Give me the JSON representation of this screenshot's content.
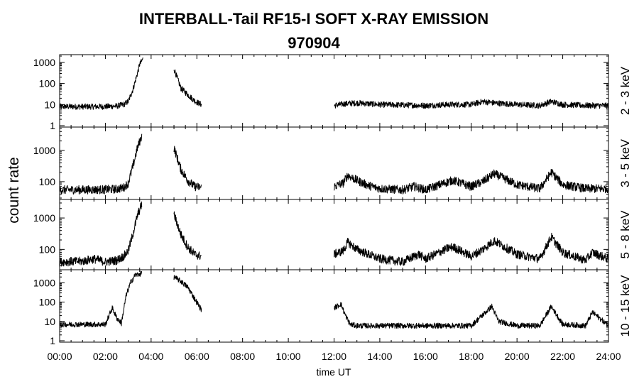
{
  "chart_data": {
    "type": "line",
    "title": "INTERBALL-Tail RF15-I SOFT X-RAY EMISSION",
    "subtitle": "970904",
    "ylabel": "count rate",
    "xlabel": "time UT",
    "y_scale": "log",
    "xlim": [
      0,
      24
    ],
    "x_ticks": [
      "00:00",
      "02:00",
      "04:00",
      "06:00",
      "08:00",
      "10:00",
      "12:00",
      "14:00",
      "16:00",
      "18:00",
      "20:00",
      "22:00",
      "24:00"
    ],
    "panels": [
      {
        "name": "2 - 3 keV",
        "ylim": [
          1,
          2000
        ],
        "y_ticks": [
          1,
          10,
          100,
          1000
        ],
        "y_tick_labels": [
          "1",
          "10",
          "100",
          "1000"
        ],
        "segments": [
          {
            "x": [
              0.0,
              1.0,
              2.0,
              2.5,
              2.8,
              3.0,
              3.2,
              3.4,
              3.5,
              3.65
            ],
            "y": [
              8,
              8,
              8,
              8.5,
              10,
              14,
              50,
              300,
              800,
              1500
            ]
          },
          {
            "x": [
              5.0,
              5.3,
              5.6,
              5.9,
              6.2
            ],
            "y": [
              500,
              60,
              30,
              15,
              10
            ]
          },
          {
            "x": [
              12.0,
              12.5,
              13,
              14,
              15,
              16,
              17,
              18,
              18.5,
              19,
              20,
              21,
              21.5,
              22,
              23,
              24
            ],
            "y": [
              9,
              11,
              12,
              10,
              9.5,
              9,
              10,
              10,
              14,
              12,
              10,
              9,
              14,
              10,
              9,
              9
            ]
          }
        ]
      },
      {
        "name": "3 - 5 keV",
        "ylim": [
          30,
          5000
        ],
        "y_ticks": [
          100,
          1000
        ],
        "y_tick_labels": [
          "100",
          "1000"
        ],
        "segments": [
          {
            "x": [
              0.0,
              1.0,
              2.0,
              2.5,
              2.8,
              3.0,
              3.2,
              3.4,
              3.6
            ],
            "y": [
              55,
              55,
              56,
              58,
              65,
              90,
              300,
              1200,
              3000
            ]
          },
          {
            "x": [
              5.0,
              5.3,
              5.6,
              5.9,
              6.2
            ],
            "y": [
              1200,
              250,
              110,
              70,
              65
            ]
          },
          {
            "x": [
              12.0,
              12.4,
              12.6,
              13.0,
              13.5,
              14,
              15,
              15.5,
              16,
              17,
              17.2,
              18,
              18.5,
              19,
              20,
              21,
              21.5,
              22,
              23,
              24
            ],
            "y": [
              70,
              90,
              160,
              110,
              75,
              60,
              55,
              70,
              55,
              100,
              110,
              70,
              100,
              180,
              80,
              60,
              200,
              80,
              60,
              60
            ]
          }
        ]
      },
      {
        "name": "5 - 8 keV",
        "ylim": [
          25,
          3500
        ],
        "y_ticks": [
          100,
          1000
        ],
        "y_tick_labels": [
          "100",
          "1000"
        ],
        "segments": [
          {
            "x": [
              0.0,
              1.0,
              1.5,
              2.0,
              2.5,
              2.8,
              3.0,
              3.2,
              3.4,
              3.6
            ],
            "y": [
              40,
              42,
              50,
              40,
              45,
              60,
              90,
              300,
              1200,
              2800
            ]
          },
          {
            "x": [
              5.0,
              5.3,
              5.6,
              5.9,
              6.2
            ],
            "y": [
              1300,
              300,
              120,
              70,
              60
            ]
          },
          {
            "x": [
              12.0,
              12.4,
              12.6,
              13.0,
              13.5,
              14,
              15,
              15.7,
              16,
              17,
              17.2,
              18,
              18.5,
              19,
              20,
              21,
              21.5,
              22,
              23,
              23.3,
              24
            ],
            "y": [
              70,
              90,
              170,
              100,
              70,
              50,
              40,
              70,
              50,
              110,
              120,
              60,
              100,
              190,
              70,
              50,
              250,
              80,
              45,
              80,
              50
            ]
          }
        ]
      },
      {
        "name": "10 - 15 keV",
        "ylim": [
          1,
          4000
        ],
        "y_ticks": [
          1,
          10,
          100,
          1000
        ],
        "y_tick_labels": [
          "1",
          "10",
          "100",
          "1000"
        ],
        "segments": [
          {
            "x": [
              0.0,
              1.0,
              2.0,
              2.3,
              2.5,
              2.7,
              2.9,
              3.1,
              3.3,
              3.6
            ],
            "y": [
              7,
              7,
              7,
              50,
              15,
              8,
              200,
              1000,
              2500,
              3000
            ]
          },
          {
            "x": [
              5.0,
              5.3,
              5.6,
              5.9,
              6.2
            ],
            "y": [
              2000,
              1200,
              600,
              150,
              40
            ]
          },
          {
            "x": [
              12.0,
              12.3,
              12.5,
              12.7,
              13,
              14,
              15,
              16,
              17,
              18,
              18.9,
              19.2,
              20,
              21,
              21.5,
              22,
              23,
              23.3,
              24
            ],
            "y": [
              50,
              80,
              20,
              7,
              6,
              6,
              6,
              6,
              6,
              6,
              60,
              10,
              6,
              6,
              60,
              7,
              6,
              30,
              6
            ]
          }
        ]
      }
    ]
  }
}
